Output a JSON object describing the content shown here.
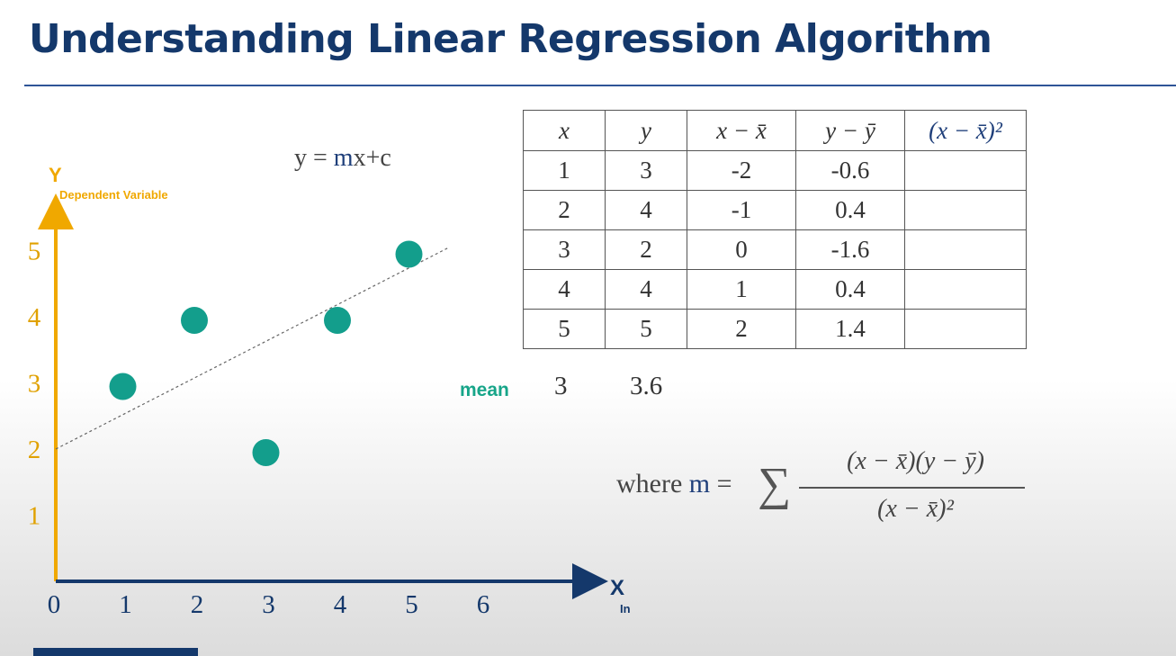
{
  "slide": {
    "title": "Understanding Linear Regression Algorithm",
    "equation": {
      "prefix": "y = ",
      "m": "m",
      "suffix": "x+c"
    }
  },
  "chart_data": {
    "type": "scatter",
    "y_axis_letter": "Y",
    "ylabel": "Dependent Variable",
    "x_axis_letter": "X",
    "xlabel": "Independent Variable",
    "xlim": [
      0,
      6.9
    ],
    "ylim": [
      0,
      5.8
    ],
    "x_ticks": [
      "0",
      "1",
      "2",
      "3",
      "4",
      "5",
      "6"
    ],
    "y_ticks": [
      "1",
      "2",
      "3",
      "4",
      "5"
    ],
    "points": [
      {
        "x": 1,
        "y": 3
      },
      {
        "x": 2,
        "y": 4
      },
      {
        "x": 3,
        "y": 2
      },
      {
        "x": 4,
        "y": 4
      },
      {
        "x": 5,
        "y": 5
      }
    ],
    "regression_line": {
      "x": [
        0,
        5.5
      ],
      "y": [
        2,
        5.05
      ],
      "style": "dashed"
    },
    "colors": {
      "points": "#139e8c",
      "y_axis": "#f0a800",
      "x_axis": "#14386b"
    }
  },
  "table": {
    "headers": [
      "x",
      "y",
      "x − x̄",
      "y − ȳ",
      "(x − x̄)²"
    ],
    "rows": [
      [
        "1",
        "3",
        "-2",
        "-0.6",
        ""
      ],
      [
        "2",
        "4",
        "-1",
        "0.4",
        ""
      ],
      [
        "3",
        "2",
        "0",
        "-1.6",
        ""
      ],
      [
        "4",
        "4",
        "1",
        "0.4",
        ""
      ],
      [
        "5",
        "5",
        "2",
        "1.4",
        ""
      ]
    ],
    "mean_label": "mean",
    "mean_x": "3",
    "mean_y": "3.6"
  },
  "formula": {
    "where": "where ",
    "m": "m",
    "equals": " =",
    "sigma": "∑",
    "numerator": "(x − x̄)(y − ȳ)",
    "denominator": "(x − x̄)²"
  },
  "colors": {
    "title": "#14386b",
    "accent": "#17a589",
    "m_color": "#1f3f7a"
  }
}
